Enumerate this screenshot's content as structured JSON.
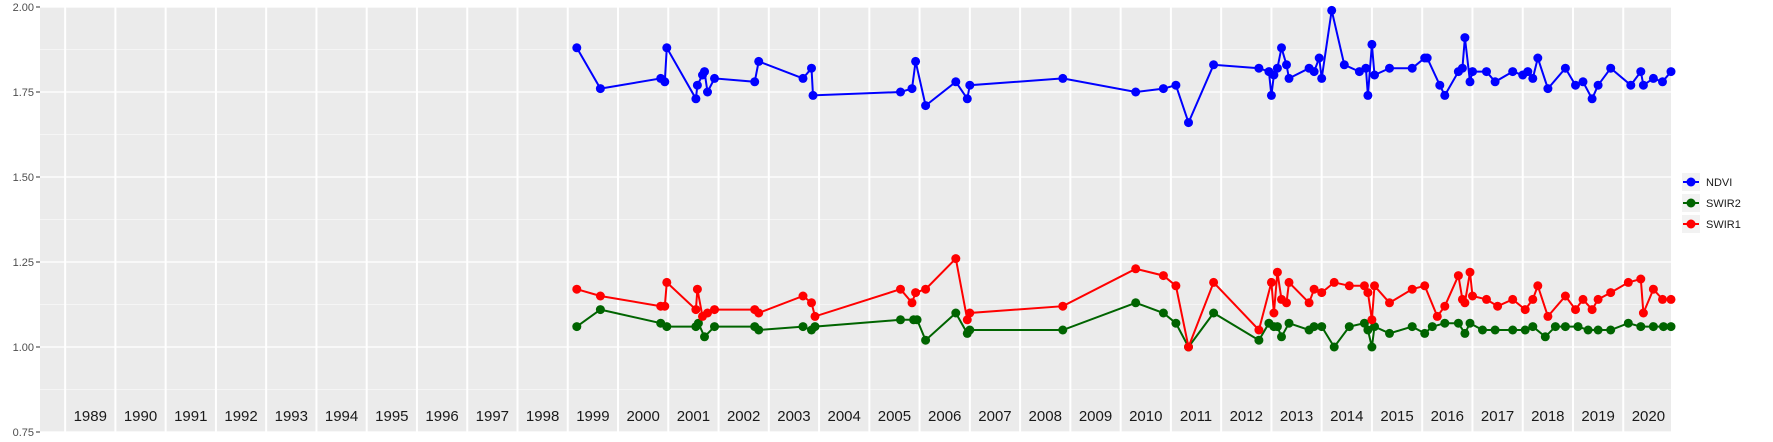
{
  "chart_data": {
    "type": "line",
    "title": "",
    "xlabel": "",
    "ylabel": "",
    "xlim": [
      1988.5,
      2020.95
    ],
    "ylim": [
      0.75,
      2.0
    ],
    "y_ticks": [
      "0.75",
      "1.00",
      "1.25",
      "1.50",
      "1.75",
      "2.00"
    ],
    "year_labels": [
      "1989",
      "1990",
      "1991",
      "1992",
      "1993",
      "1994",
      "1995",
      "1996",
      "1997",
      "1998",
      "1999",
      "2000",
      "2001",
      "2002",
      "2003",
      "2004",
      "2005",
      "2006",
      "2007",
      "2008",
      "2009",
      "2010",
      "2011",
      "2012",
      "2013",
      "2014",
      "2015",
      "2016",
      "2017",
      "2018",
      "2019",
      "2020"
    ],
    "grid": true,
    "legend_position": "right",
    "series": [
      {
        "name": "NDVI",
        "color": "#0000ff",
        "points": [
          [
            1999.18,
            1.88
          ],
          [
            1999.65,
            1.76
          ],
          [
            2000.85,
            1.79
          ],
          [
            2000.93,
            1.78
          ],
          [
            2000.97,
            1.88
          ],
          [
            2001.55,
            1.73
          ],
          [
            2001.58,
            1.77
          ],
          [
            2001.68,
            1.8
          ],
          [
            2001.72,
            1.81
          ],
          [
            2001.78,
            1.75
          ],
          [
            2001.92,
            1.79
          ],
          [
            2002.72,
            1.78
          ],
          [
            2002.8,
            1.84
          ],
          [
            2003.68,
            1.79
          ],
          [
            2003.85,
            1.82
          ],
          [
            2003.88,
            1.74
          ],
          [
            2005.62,
            1.75
          ],
          [
            2005.85,
            1.76
          ],
          [
            2005.92,
            1.84
          ],
          [
            2006.12,
            1.71
          ],
          [
            2006.72,
            1.78
          ],
          [
            2006.95,
            1.73
          ],
          [
            2007.0,
            1.77
          ],
          [
            2008.85,
            1.79
          ],
          [
            2010.3,
            1.75
          ],
          [
            2010.85,
            1.76
          ],
          [
            2011.1,
            1.77
          ],
          [
            2011.35,
            1.66
          ],
          [
            2011.85,
            1.83
          ],
          [
            2012.75,
            1.82
          ],
          [
            2012.95,
            1.81
          ],
          [
            2013.0,
            1.74
          ],
          [
            2013.05,
            1.8
          ],
          [
            2013.12,
            1.82
          ],
          [
            2013.2,
            1.88
          ],
          [
            2013.3,
            1.83
          ],
          [
            2013.35,
            1.79
          ],
          [
            2013.75,
            1.82
          ],
          [
            2013.85,
            1.81
          ],
          [
            2013.95,
            1.85
          ],
          [
            2014.0,
            1.79
          ],
          [
            2014.2,
            1.99
          ],
          [
            2014.45,
            1.83
          ],
          [
            2014.75,
            1.81
          ],
          [
            2014.88,
            1.82
          ],
          [
            2014.92,
            1.74
          ],
          [
            2015.0,
            1.89
          ],
          [
            2015.05,
            1.8
          ],
          [
            2015.35,
            1.82
          ],
          [
            2015.8,
            1.82
          ],
          [
            2016.05,
            1.85
          ],
          [
            2016.1,
            1.85
          ],
          [
            2016.35,
            1.77
          ],
          [
            2016.45,
            1.74
          ],
          [
            2016.72,
            1.81
          ],
          [
            2016.8,
            1.82
          ],
          [
            2016.85,
            1.91
          ],
          [
            2016.95,
            1.78
          ],
          [
            2017.0,
            1.81
          ],
          [
            2017.28,
            1.81
          ],
          [
            2017.45,
            1.78
          ],
          [
            2017.8,
            1.81
          ],
          [
            2018.0,
            1.8
          ],
          [
            2018.1,
            1.81
          ],
          [
            2018.2,
            1.79
          ],
          [
            2018.3,
            1.85
          ],
          [
            2018.5,
            1.76
          ],
          [
            2018.85,
            1.82
          ],
          [
            2019.05,
            1.77
          ],
          [
            2019.2,
            1.78
          ],
          [
            2019.38,
            1.73
          ],
          [
            2019.5,
            1.77
          ],
          [
            2019.75,
            1.82
          ],
          [
            2020.15,
            1.77
          ],
          [
            2020.35,
            1.81
          ],
          [
            2020.4,
            1.77
          ],
          [
            2020.6,
            1.79
          ],
          [
            2020.78,
            1.78
          ],
          [
            2020.95,
            1.81
          ]
        ]
      },
      {
        "name": "SWIR2",
        "color": "#006400",
        "points": [
          [
            1999.18,
            1.06
          ],
          [
            1999.65,
            1.11
          ],
          [
            2000.85,
            1.07
          ],
          [
            2000.97,
            1.06
          ],
          [
            2001.55,
            1.06
          ],
          [
            2001.6,
            1.07
          ],
          [
            2001.72,
            1.03
          ],
          [
            2001.92,
            1.06
          ],
          [
            2002.72,
            1.06
          ],
          [
            2002.8,
            1.05
          ],
          [
            2003.68,
            1.06
          ],
          [
            2003.85,
            1.05
          ],
          [
            2003.92,
            1.06
          ],
          [
            2005.62,
            1.08
          ],
          [
            2005.88,
            1.08
          ],
          [
            2005.95,
            1.08
          ],
          [
            2006.12,
            1.02
          ],
          [
            2006.72,
            1.1
          ],
          [
            2006.95,
            1.04
          ],
          [
            2007.0,
            1.05
          ],
          [
            2008.85,
            1.05
          ],
          [
            2010.3,
            1.13
          ],
          [
            2010.85,
            1.1
          ],
          [
            2011.1,
            1.07
          ],
          [
            2011.35,
            1.0
          ],
          [
            2011.85,
            1.1
          ],
          [
            2012.75,
            1.02
          ],
          [
            2012.95,
            1.07
          ],
          [
            2013.05,
            1.06
          ],
          [
            2013.12,
            1.06
          ],
          [
            2013.2,
            1.03
          ],
          [
            2013.35,
            1.07
          ],
          [
            2013.75,
            1.05
          ],
          [
            2013.85,
            1.06
          ],
          [
            2014.0,
            1.06
          ],
          [
            2014.25,
            1.0
          ],
          [
            2014.55,
            1.06
          ],
          [
            2014.85,
            1.07
          ],
          [
            2014.92,
            1.05
          ],
          [
            2015.0,
            1.0
          ],
          [
            2015.05,
            1.06
          ],
          [
            2015.35,
            1.04
          ],
          [
            2015.8,
            1.06
          ],
          [
            2016.05,
            1.04
          ],
          [
            2016.2,
            1.06
          ],
          [
            2016.45,
            1.07
          ],
          [
            2016.72,
            1.07
          ],
          [
            2016.85,
            1.04
          ],
          [
            2016.95,
            1.07
          ],
          [
            2017.2,
            1.05
          ],
          [
            2017.45,
            1.05
          ],
          [
            2017.8,
            1.05
          ],
          [
            2018.05,
            1.05
          ],
          [
            2018.2,
            1.06
          ],
          [
            2018.45,
            1.03
          ],
          [
            2018.65,
            1.06
          ],
          [
            2018.85,
            1.06
          ],
          [
            2019.1,
            1.06
          ],
          [
            2019.3,
            1.05
          ],
          [
            2019.5,
            1.05
          ],
          [
            2019.75,
            1.05
          ],
          [
            2020.1,
            1.07
          ],
          [
            2020.35,
            1.06
          ],
          [
            2020.6,
            1.06
          ],
          [
            2020.8,
            1.06
          ],
          [
            2020.95,
            1.06
          ]
        ]
      },
      {
        "name": "SWIR1",
        "color": "#ff0000",
        "points": [
          [
            1999.18,
            1.17
          ],
          [
            1999.65,
            1.15
          ],
          [
            2000.85,
            1.12
          ],
          [
            2000.93,
            1.12
          ],
          [
            2000.97,
            1.19
          ],
          [
            2001.55,
            1.11
          ],
          [
            2001.58,
            1.17
          ],
          [
            2001.68,
            1.09
          ],
          [
            2001.78,
            1.1
          ],
          [
            2001.92,
            1.11
          ],
          [
            2002.72,
            1.11
          ],
          [
            2002.8,
            1.1
          ],
          [
            2003.68,
            1.15
          ],
          [
            2003.85,
            1.13
          ],
          [
            2003.92,
            1.09
          ],
          [
            2005.62,
            1.17
          ],
          [
            2005.85,
            1.13
          ],
          [
            2005.92,
            1.16
          ],
          [
            2006.12,
            1.17
          ],
          [
            2006.72,
            1.26
          ],
          [
            2006.95,
            1.08
          ],
          [
            2007.0,
            1.1
          ],
          [
            2008.85,
            1.12
          ],
          [
            2010.3,
            1.23
          ],
          [
            2010.85,
            1.21
          ],
          [
            2011.1,
            1.18
          ],
          [
            2011.35,
            1.0
          ],
          [
            2011.85,
            1.19
          ],
          [
            2012.75,
            1.05
          ],
          [
            2013.0,
            1.19
          ],
          [
            2013.05,
            1.1
          ],
          [
            2013.12,
            1.22
          ],
          [
            2013.2,
            1.14
          ],
          [
            2013.3,
            1.13
          ],
          [
            2013.35,
            1.19
          ],
          [
            2013.75,
            1.13
          ],
          [
            2013.85,
            1.17
          ],
          [
            2014.0,
            1.16
          ],
          [
            2014.25,
            1.19
          ],
          [
            2014.55,
            1.18
          ],
          [
            2014.85,
            1.18
          ],
          [
            2014.92,
            1.16
          ],
          [
            2015.0,
            1.08
          ],
          [
            2015.05,
            1.18
          ],
          [
            2015.35,
            1.13
          ],
          [
            2015.8,
            1.17
          ],
          [
            2016.05,
            1.18
          ],
          [
            2016.3,
            1.09
          ],
          [
            2016.45,
            1.12
          ],
          [
            2016.72,
            1.21
          ],
          [
            2016.8,
            1.14
          ],
          [
            2016.85,
            1.13
          ],
          [
            2016.95,
            1.22
          ],
          [
            2017.0,
            1.15
          ],
          [
            2017.28,
            1.14
          ],
          [
            2017.5,
            1.12
          ],
          [
            2017.8,
            1.14
          ],
          [
            2018.05,
            1.11
          ],
          [
            2018.2,
            1.14
          ],
          [
            2018.3,
            1.18
          ],
          [
            2018.5,
            1.09
          ],
          [
            2018.85,
            1.15
          ],
          [
            2019.05,
            1.11
          ],
          [
            2019.2,
            1.14
          ],
          [
            2019.38,
            1.11
          ],
          [
            2019.5,
            1.14
          ],
          [
            2019.75,
            1.16
          ],
          [
            2020.1,
            1.19
          ],
          [
            2020.35,
            1.2
          ],
          [
            2020.4,
            1.1
          ],
          [
            2020.6,
            1.17
          ],
          [
            2020.78,
            1.14
          ],
          [
            2020.95,
            1.14
          ]
        ]
      }
    ]
  }
}
